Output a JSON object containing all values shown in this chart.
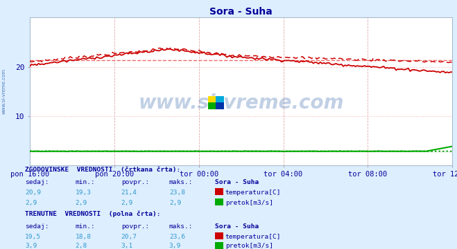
{
  "title": "Sora - Suha",
  "title_color": "#000099",
  "bg_color": "#ddeeff",
  "plot_bg_color": "#ffffff",
  "grid_color": "#ffcccc",
  "grid_v_color": "#ddaaaa",
  "x_labels": [
    "pon 16:00",
    "pon 20:00",
    "tor 00:00",
    "tor 04:00",
    "tor 08:00",
    "tor 12:00"
  ],
  "x_ticks_pos": [
    0,
    48,
    96,
    144,
    192,
    240
  ],
  "total_points": 241,
  "ylim": [
    0,
    30
  ],
  "yticks": [
    10,
    20
  ],
  "temp_hist_avg": 21.4,
  "temp_curr_avg": 20.7,
  "flow_hist_avg": 2.9,
  "flow_curr_avg": 3.1,
  "temp_color": "#cc0000",
  "flow_color": "#00aa00",
  "flow_dot_color": "#009900",
  "hist_avg_temp_color": "#ee6666",
  "hist_avg_flow_color": "#66bb66",
  "watermark_color": "#3366aa",
  "left_label": "www.si-vreme.com",
  "text_color": "#000099",
  "table_label_color": "#000099",
  "table_value_color": "#3399cc",
  "hist_label": "ZGODOVINSKE  VREDNOSTI  (črtkana črta):",
  "curr_label": "TRENUTNE  VREDNOSTI  (polna črta):",
  "col_headers": [
    "sedaj:",
    "min.:",
    "povpr.:",
    "maks.:"
  ],
  "station_label": "Sora - Suha",
  "hist_temp_vals": [
    "20,9",
    "19,3",
    "21,4",
    "23,8"
  ],
  "hist_flow_vals": [
    "2,9",
    "2,9",
    "2,9",
    "2,9"
  ],
  "curr_temp_vals": [
    "19,5",
    "18,8",
    "20,7",
    "23,6"
  ],
  "curr_flow_vals": [
    "3,9",
    "2,8",
    "3,1",
    "3,9"
  ],
  "temp_label": "temperatura[C]",
  "flow_label": "pretok[m3/s]"
}
